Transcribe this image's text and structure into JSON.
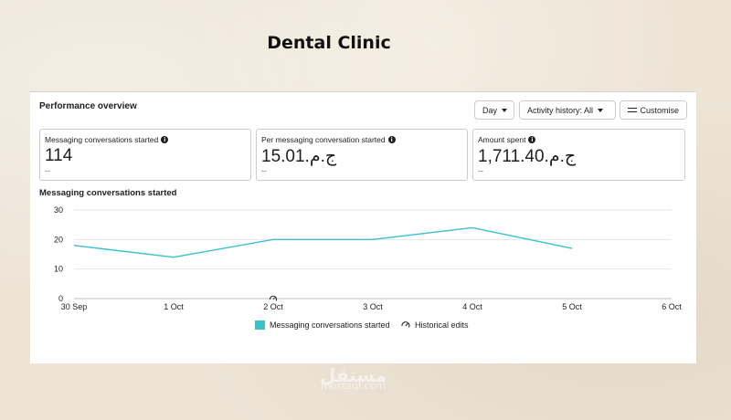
{
  "headline": "Dental Clinic",
  "panel": {
    "title": "Performance overview",
    "buttons": {
      "day": "Day",
      "activity": "Activity history: All",
      "customise": "Customise"
    }
  },
  "metrics": [
    {
      "label": "Messaging conversations started",
      "value": "114",
      "sub": "--"
    },
    {
      "label": "Per messaging conversation started",
      "value": "15.01.ج.م",
      "sub": "--"
    },
    {
      "label": "Amount spent",
      "value": "1,711.40.ج.م",
      "sub": "--"
    }
  ],
  "chart_title": "Messaging conversations started",
  "chart_data": {
    "type": "line",
    "title": "Messaging conversations started",
    "categories": [
      "30 Sep",
      "1 Oct",
      "2 Oct",
      "3 Oct",
      "4 Oct",
      "5 Oct",
      "6 Oct"
    ],
    "series": [
      {
        "name": "Messaging conversations started",
        "color": "#3ac1c9",
        "values": [
          18,
          14,
          20,
          20,
          24,
          17,
          null
        ]
      }
    ],
    "yticks": [
      0,
      10,
      20,
      30
    ],
    "ylim": [
      0,
      30
    ],
    "grid": true,
    "legend": {
      "position": "bottom",
      "items": [
        "Messaging conversations started",
        "Historical edits"
      ]
    },
    "historical_edit_at": "2 Oct"
  },
  "watermark": {
    "text": "مستقل",
    "sub": "mostaql.com"
  },
  "colors": {
    "accent": "#3ac1c9",
    "grid": "#e4e6eb",
    "text": "#1c1e21"
  }
}
